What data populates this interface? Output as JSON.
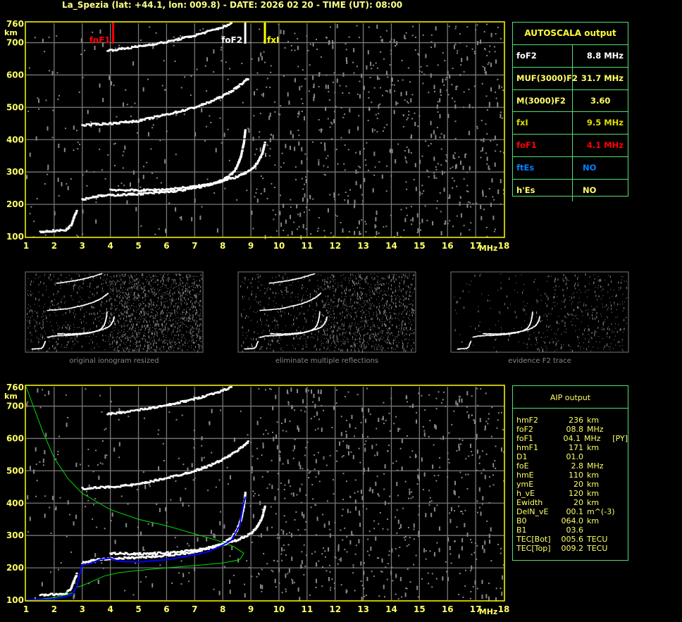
{
  "title": "La_Spezia (lat: +44.1, lon: 009.8) - DATE: 2026 02 20 - TIME (UT): 08:00",
  "chart_data": {
    "type": "scatter",
    "xlabel": "MHz",
    "ylabel": "km",
    "xlim": [
      1,
      18
    ],
    "ylim": [
      100,
      760
    ],
    "x_ticks": [
      "1",
      "2",
      "3",
      "4",
      "5",
      "6",
      "7",
      "8",
      "9",
      "10",
      "11",
      "12",
      "13",
      "14",
      "15",
      "16",
      "17",
      "18"
    ],
    "y_ticks": [
      "760",
      "700",
      "600",
      "500",
      "400",
      "300",
      "200",
      "100"
    ],
    "grid": true,
    "colors": {
      "frame": "#ffff00",
      "grid": "#777777",
      "trace": "#ffffff",
      "noise": "#888888",
      "profile": "#00dd00",
      "fit": "#0000ff"
    },
    "markers": [
      {
        "label": "foF1",
        "freq": 4.1,
        "color": "#ff0000"
      },
      {
        "label": "foF2",
        "freq": 8.8,
        "color": "#ffffff"
      },
      {
        "label": "fxI",
        "freq": 9.5,
        "color": "#ffff00"
      }
    ],
    "traces": {
      "E": [
        [
          1.5,
          115
        ],
        [
          2.0,
          118
        ],
        [
          2.4,
          120
        ],
        [
          2.6,
          135
        ],
        [
          2.7,
          160
        ],
        [
          2.8,
          180
        ]
      ],
      "F_ordinary": [
        [
          3.0,
          215
        ],
        [
          3.5,
          225
        ],
        [
          4.0,
          228
        ],
        [
          5.0,
          232
        ],
        [
          6.0,
          238
        ],
        [
          6.5,
          243
        ],
        [
          7.0,
          250
        ],
        [
          7.5,
          260
        ],
        [
          8.0,
          275
        ],
        [
          8.3,
          292
        ],
        [
          8.5,
          315
        ],
        [
          8.65,
          350
        ],
        [
          8.75,
          390
        ],
        [
          8.8,
          430
        ]
      ],
      "F_extraordinary": [
        [
          4.0,
          245
        ],
        [
          5.0,
          243
        ],
        [
          6.0,
          246
        ],
        [
          7.0,
          255
        ],
        [
          7.5,
          262
        ],
        [
          8.0,
          272
        ],
        [
          8.5,
          285
        ],
        [
          9.0,
          305
        ],
        [
          9.2,
          325
        ],
        [
          9.4,
          355
        ],
        [
          9.5,
          390
        ]
      ],
      "F_second_hop": [
        [
          3.0,
          445
        ],
        [
          4.0,
          450
        ],
        [
          5.0,
          458
        ],
        [
          5.5,
          468
        ],
        [
          6.0,
          478
        ],
        [
          6.5,
          488
        ],
        [
          7.0,
          500
        ],
        [
          7.5,
          515
        ],
        [
          8.0,
          535
        ],
        [
          8.4,
          555
        ],
        [
          8.7,
          575
        ],
        [
          8.9,
          590
        ]
      ],
      "F_third_hop": [
        [
          3.9,
          675
        ],
        [
          4.5,
          682
        ],
        [
          5.0,
          688
        ],
        [
          6.0,
          702
        ],
        [
          6.5,
          712
        ],
        [
          7.0,
          722
        ],
        [
          7.5,
          735
        ],
        [
          8.0,
          748
        ],
        [
          8.3,
          758
        ]
      ]
    },
    "profile": [
      [
        1.0,
        760
      ],
      [
        1.3,
        690
      ],
      [
        1.6,
        620
      ],
      [
        2.0,
        540
      ],
      [
        2.5,
        475
      ],
      [
        3.0,
        430
      ],
      [
        4.0,
        380
      ],
      [
        5.0,
        350
      ],
      [
        6.0,
        330
      ],
      [
        7.0,
        305
      ],
      [
        7.8,
        285
      ],
      [
        8.4,
        265
      ],
      [
        8.75,
        245
      ],
      [
        8.6,
        225
      ],
      [
        8.0,
        215
      ],
      [
        7.0,
        207
      ],
      [
        6.0,
        200
      ],
      [
        5.0,
        192
      ],
      [
        4.3,
        185
      ],
      [
        3.8,
        175
      ],
      [
        3.4,
        160
      ],
      [
        3.0,
        145
      ],
      [
        2.8,
        140
      ],
      [
        2.7,
        125
      ],
      [
        2.5,
        118
      ],
      [
        2.0,
        108
      ],
      [
        1.5,
        103
      ],
      [
        1.0,
        100
      ]
    ],
    "fit": [
      [
        1.0,
        100
      ],
      [
        2.0,
        103
      ],
      [
        2.6,
        115
      ],
      [
        2.8,
        140
      ],
      [
        3.0,
        210
      ],
      [
        3.3,
        213
      ],
      [
        3.6,
        225
      ],
      [
        4.0,
        230
      ],
      [
        4.3,
        220
      ],
      [
        5.0,
        218
      ],
      [
        6.0,
        225
      ],
      [
        7.0,
        240
      ],
      [
        7.5,
        250
      ],
      [
        8.0,
        270
      ],
      [
        8.3,
        285
      ],
      [
        8.6,
        330
      ],
      [
        8.7,
        380
      ],
      [
        8.8,
        420
      ]
    ]
  },
  "autoscala": {
    "header": "AUTOSCALA output",
    "rows": [
      {
        "key": "foF2",
        "value": "8.8 MHz",
        "color": "#ffffff"
      },
      {
        "key": "MUF(3000)F2",
        "value": "31.7 MHz",
        "color": "#ffff66"
      },
      {
        "key": "M(3000)F2",
        "value": "3.60",
        "color": "#ffff66"
      },
      {
        "key": "fxI",
        "value": "9.5 MHz",
        "color": "#dddd00"
      },
      {
        "key": "foF1",
        "value": "4.1 MHz",
        "color": "#ff0000"
      },
      {
        "key": "ftEs",
        "value": "NO",
        "color": "#0080ff"
      },
      {
        "key": "h'Es",
        "value": "NO",
        "color": "#ffff66"
      }
    ]
  },
  "thumbnails": [
    {
      "label": "original ionogram resized"
    },
    {
      "label": "eliminate multiple reflections"
    },
    {
      "label": "evidence F2 trace"
    }
  ],
  "aip": {
    "header": "AIP output",
    "rows": [
      [
        "hmF2",
        "236",
        "km",
        ""
      ],
      [
        "foF2",
        "08.8",
        "MHz",
        ""
      ],
      [
        "foF1",
        "04.1",
        "MHz",
        "[PY]"
      ],
      [
        "hmF1",
        "171",
        "km",
        ""
      ],
      [
        "D1",
        "01.0",
        "",
        ""
      ],
      [
        "foE",
        "2.8",
        "MHz",
        ""
      ],
      [
        "hmE",
        "110",
        "km",
        ""
      ],
      [
        "ymE",
        "20",
        "km",
        ""
      ],
      [
        "h_vE",
        "120",
        "km",
        ""
      ],
      [
        "Ewidth",
        "20",
        "km",
        ""
      ],
      [
        "DelN_vE",
        "00.1",
        "m^(-3)",
        ""
      ],
      [
        "B0",
        "064.0",
        "km",
        ""
      ],
      [
        "B1",
        "03.6",
        "",
        ""
      ],
      [
        "TEC[Bot]",
        "005.6",
        "TECU",
        ""
      ],
      [
        "TEC[Top]",
        "009.2",
        "TECU",
        ""
      ]
    ]
  }
}
